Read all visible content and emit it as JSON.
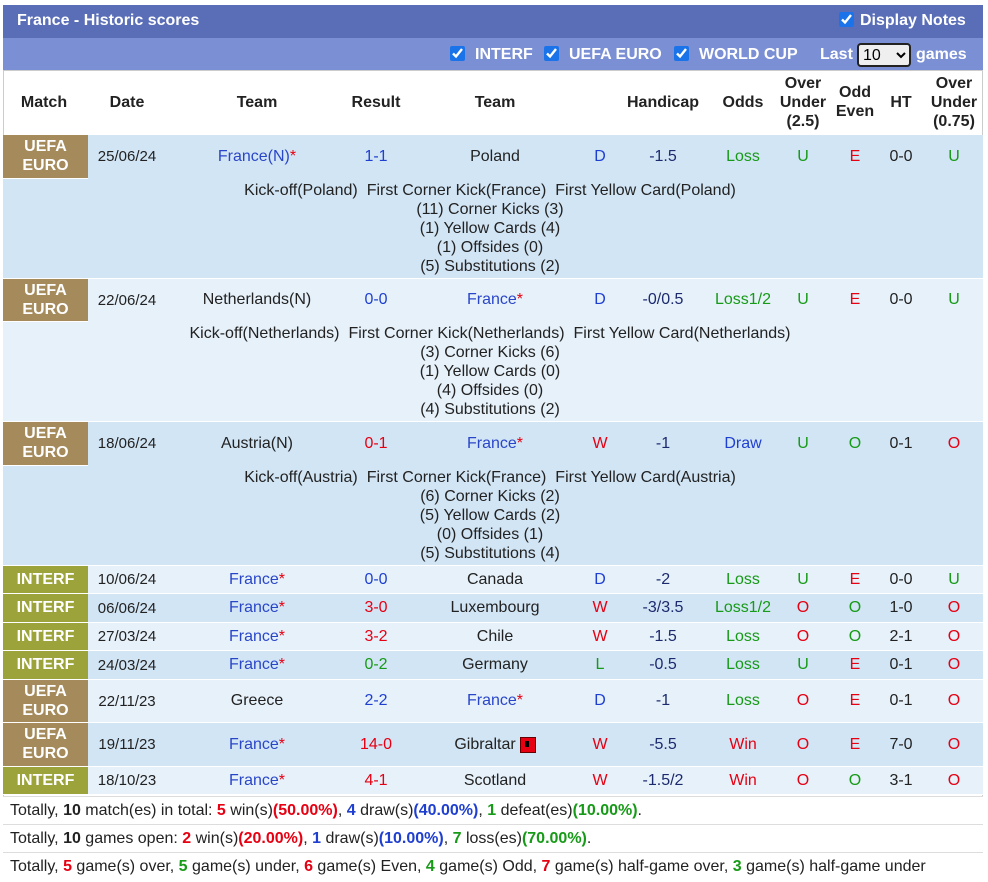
{
  "header": {
    "title": "France - Historic scores",
    "display_notes": "Display Notes",
    "display_notes_checked": true,
    "filters": [
      {
        "label": "INTERF",
        "checked": true
      },
      {
        "label": "UEFA EURO",
        "checked": true
      },
      {
        "label": "WORLD CUP",
        "checked": true
      }
    ],
    "last_label": "Last",
    "last_value": "10",
    "games_label": "games"
  },
  "columns": [
    "Match",
    "Date",
    "Team",
    "Result",
    "Team",
    "Handicap",
    "Odds",
    "Over Under (2.5)",
    "Odd Even",
    "HT",
    "Over Under (0.75)"
  ],
  "colors": {
    "competition": {
      "UEFA EURO": "#a58b5b",
      "INTERF": "#9ca33a"
    },
    "outcome": {
      "W": "#e60012",
      "D": "#1f3fd0",
      "L": "#179a17"
    },
    "odds": {
      "Win": "#e60012",
      "Draw": "#1f3fd0",
      "Loss": "#179a17",
      "Loss1/2": "#179a17"
    },
    "ou": {
      "U": "#179a17",
      "O": "#e60012"
    },
    "oe": {
      "E": "#e60012",
      "O": "#179a17"
    }
  },
  "matches": [
    {
      "competition": "UEFA EURO",
      "date": "25/06/24",
      "home": {
        "name": "France(N)",
        "mark": "*"
      },
      "result": "1-1",
      "away": {
        "name": "Poland"
      },
      "outcome": "D",
      "handicap": "-1.5",
      "odds": "Loss",
      "ou": "U",
      "oe": "E",
      "ht": "0-0",
      "ou2": "U",
      "notes": {
        "events": [
          "Kick-off(Poland)",
          "First Corner Kick(France)",
          "First Yellow Card(Poland)"
        ],
        "stats": [
          "(11) Corner Kicks (3)",
          "(1) Yellow Cards (4)",
          "(1) Offsides (0)",
          "(5) Substitutions (2)"
        ]
      }
    },
    {
      "competition": "UEFA EURO",
      "date": "22/06/24",
      "home": {
        "name": "Netherlands(N)"
      },
      "result": "0-0",
      "away": {
        "name": "France",
        "mark": "*"
      },
      "outcome": "D",
      "handicap": "-0/0.5",
      "odds": "Loss1/2",
      "ou": "U",
      "oe": "E",
      "ht": "0-0",
      "ou2": "U",
      "notes": {
        "events": [
          "Kick-off(Netherlands)",
          "First Corner Kick(Netherlands)",
          "First Yellow Card(Netherlands)"
        ],
        "stats": [
          "(3) Corner Kicks (6)",
          "(1) Yellow Cards (0)",
          "(4) Offsides (0)",
          "(4) Substitutions (2)"
        ]
      }
    },
    {
      "competition": "UEFA EURO",
      "date": "18/06/24",
      "home": {
        "name": "Austria(N)"
      },
      "result": "0-1",
      "away": {
        "name": "France",
        "mark": "*"
      },
      "outcome": "W",
      "handicap": "-1",
      "odds": "Draw",
      "ou": "U",
      "oe": "O",
      "ht": "0-1",
      "ou2": "O",
      "notes": {
        "events": [
          "Kick-off(Austria)",
          "First Corner Kick(France)",
          "First Yellow Card(Austria)"
        ],
        "stats": [
          "(6) Corner Kicks (2)",
          "(5) Yellow Cards (2)",
          "(0) Offsides (1)",
          "(5) Substitutions (4)"
        ]
      }
    },
    {
      "competition": "INTERF",
      "date": "10/06/24",
      "home": {
        "name": "France",
        "mark": "*"
      },
      "result": "0-0",
      "away": {
        "name": "Canada"
      },
      "outcome": "D",
      "handicap": "-2",
      "odds": "Loss",
      "ou": "U",
      "oe": "E",
      "ht": "0-0",
      "ou2": "U"
    },
    {
      "competition": "INTERF",
      "date": "06/06/24",
      "home": {
        "name": "France",
        "mark": "*"
      },
      "result": "3-0",
      "away": {
        "name": "Luxembourg"
      },
      "outcome": "W",
      "handicap": "-3/3.5",
      "odds": "Loss1/2",
      "ou": "O",
      "oe": "O",
      "ht": "1-0",
      "ou2": "O"
    },
    {
      "competition": "INTERF",
      "date": "27/03/24",
      "home": {
        "name": "France",
        "mark": "*"
      },
      "result": "3-2",
      "away": {
        "name": "Chile"
      },
      "outcome": "W",
      "handicap": "-1.5",
      "odds": "Loss",
      "ou": "O",
      "oe": "O",
      "ht": "2-1",
      "ou2": "O"
    },
    {
      "competition": "INTERF",
      "date": "24/03/24",
      "home": {
        "name": "France",
        "mark": "*"
      },
      "result": "0-2",
      "away": {
        "name": "Germany"
      },
      "outcome": "L",
      "handicap": "-0.5",
      "odds": "Loss",
      "ou": "U",
      "oe": "E",
      "ht": "0-1",
      "ou2": "O"
    },
    {
      "competition": "UEFA EURO",
      "date": "22/11/23",
      "home": {
        "name": "Greece"
      },
      "result": "2-2",
      "away": {
        "name": "France",
        "mark": "*"
      },
      "outcome": "D",
      "handicap": "-1",
      "odds": "Loss",
      "ou": "O",
      "oe": "E",
      "ht": "0-1",
      "ou2": "O"
    },
    {
      "competition": "UEFA EURO",
      "date": "19/11/23",
      "home": {
        "name": "France",
        "mark": "*"
      },
      "result": "14-0",
      "away": {
        "name": "Gibraltar",
        "red_cards": 1
      },
      "outcome": "W",
      "handicap": "-5.5",
      "odds": "Win",
      "ou": "O",
      "oe": "E",
      "ht": "7-0",
      "ou2": "O"
    },
    {
      "competition": "INTERF",
      "date": "18/10/23",
      "home": {
        "name": "France",
        "mark": "*"
      },
      "result": "4-1",
      "away": {
        "name": "Scotland"
      },
      "outcome": "W",
      "handicap": "-1.5/2",
      "odds": "Win",
      "ou": "O",
      "oe": "O",
      "ht": "3-1",
      "ou2": "O"
    }
  ],
  "summary": [
    [
      {
        "text": "Totally, "
      },
      {
        "text": "10",
        "bold": true
      },
      {
        "text": " match(es) in total: "
      },
      {
        "text": "5",
        "bold": true,
        "color": "#e60012"
      },
      {
        "text": " win(s)"
      },
      {
        "text": "(50.00%)",
        "bold": true,
        "color": "#e60012"
      },
      {
        "text": ", "
      },
      {
        "text": "4",
        "bold": true,
        "color": "#1f3fd0"
      },
      {
        "text": " draw(s)"
      },
      {
        "text": "(40.00%)",
        "bold": true,
        "color": "#1f3fd0"
      },
      {
        "text": ", "
      },
      {
        "text": "1",
        "bold": true,
        "color": "#179a17"
      },
      {
        "text": " defeat(es)"
      },
      {
        "text": "(10.00%)",
        "bold": true,
        "color": "#179a17"
      },
      {
        "text": "."
      }
    ],
    [
      {
        "text": "Totally, "
      },
      {
        "text": "10",
        "bold": true
      },
      {
        "text": " games open: "
      },
      {
        "text": "2",
        "bold": true,
        "color": "#e60012"
      },
      {
        "text": " win(s)"
      },
      {
        "text": "(20.00%)",
        "bold": true,
        "color": "#e60012"
      },
      {
        "text": ", "
      },
      {
        "text": "1",
        "bold": true,
        "color": "#1f3fd0"
      },
      {
        "text": " draw(s)"
      },
      {
        "text": "(10.00%)",
        "bold": true,
        "color": "#1f3fd0"
      },
      {
        "text": ", "
      },
      {
        "text": "7",
        "bold": true,
        "color": "#179a17"
      },
      {
        "text": " loss(es)"
      },
      {
        "text": "(70.00%)",
        "bold": true,
        "color": "#179a17"
      },
      {
        "text": "."
      }
    ],
    [
      {
        "text": "Totally, "
      },
      {
        "text": "5",
        "bold": true,
        "color": "#e60012"
      },
      {
        "text": " game(s) over, "
      },
      {
        "text": "5",
        "bold": true,
        "color": "#179a17"
      },
      {
        "text": " game(s) under, "
      },
      {
        "text": "6",
        "bold": true,
        "color": "#e60012"
      },
      {
        "text": " game(s) Even, "
      },
      {
        "text": "4",
        "bold": true,
        "color": "#179a17"
      },
      {
        "text": " game(s) Odd, "
      },
      {
        "text": "7",
        "bold": true,
        "color": "#e60012"
      },
      {
        "text": " game(s) half-game over, "
      },
      {
        "text": "3",
        "bold": true,
        "color": "#179a17"
      },
      {
        "text": " game(s) half-game under"
      }
    ]
  ]
}
